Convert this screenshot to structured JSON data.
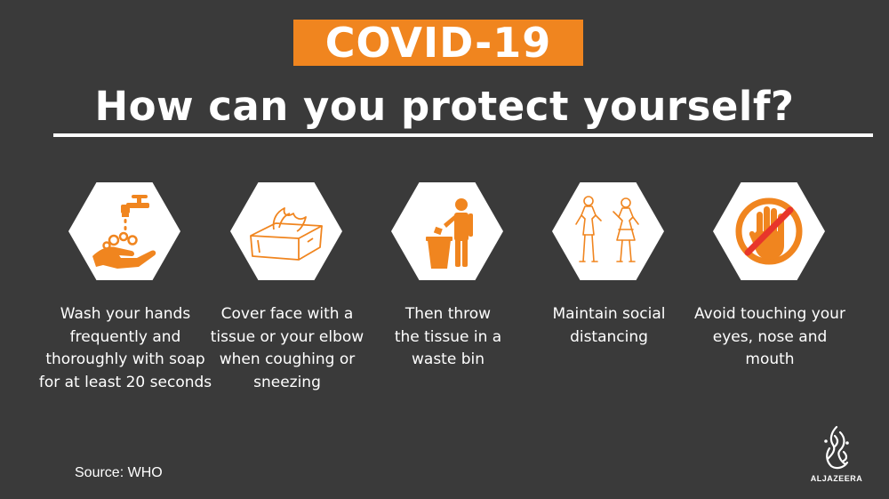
{
  "banner": {
    "title": "COVID-19"
  },
  "headline": "How can you protect yourself?",
  "steps": [
    {
      "icon": "hand-washing-icon",
      "lines": [
        "Wash your hands",
        "frequently and",
        "thoroughly with soap",
        "for at least 20 seconds"
      ]
    },
    {
      "icon": "tissue-box-icon",
      "lines": [
        "Cover face with a",
        "tissue or your elbow",
        "when coughing or",
        "sneezing"
      ]
    },
    {
      "icon": "waste-bin-icon",
      "lines": [
        "Then throw",
        "the tissue in a",
        "waste bin"
      ]
    },
    {
      "icon": "social-distancing-icon",
      "lines": [
        "Maintain social",
        "distancing"
      ]
    },
    {
      "icon": "no-touch-face-icon",
      "lines": [
        "Avoid touching your",
        "eyes, nose and",
        "mouth"
      ]
    }
  ],
  "source": "Source: WHO",
  "logo": {
    "name": "aljazeera-logo",
    "text": "ALJAZEERA"
  },
  "colors": {
    "background": "#3a3a3a",
    "accent": "#f0851f",
    "text": "#ffffff",
    "prohibit": "#e8362b"
  }
}
